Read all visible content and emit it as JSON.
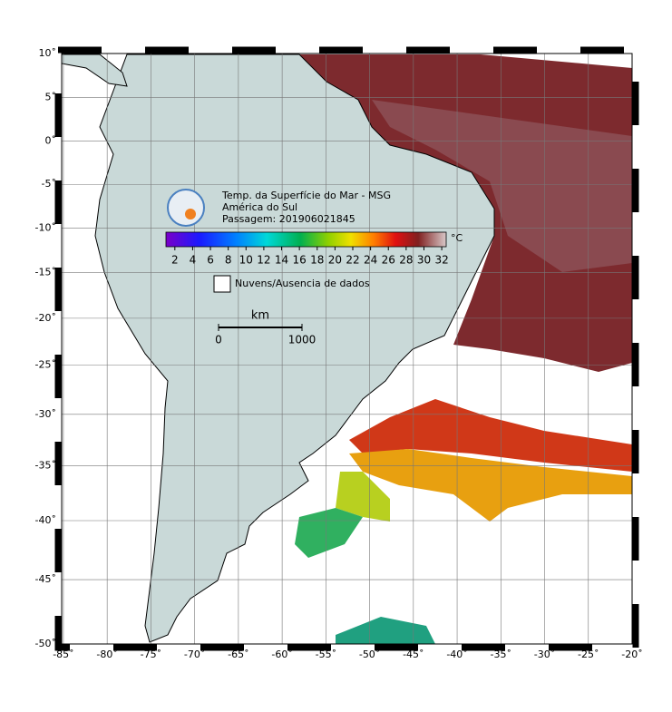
{
  "map": {
    "title": "Temp. da Superfície do Mar - MSG",
    "region": "América do Sul",
    "pass": "Passagem: 201906021845",
    "xlim": [
      -85.2,
      -20
    ],
    "ylim": [
      -50,
      10
    ],
    "xticks": [
      {
        "value": -85,
        "label": "-85˚"
      },
      {
        "value": -80,
        "label": "-80˚"
      },
      {
        "value": -75,
        "label": "-75˚"
      },
      {
        "value": -70,
        "label": "-70˚"
      },
      {
        "value": -65,
        "label": "-65˚"
      },
      {
        "value": -60,
        "label": "-60˚"
      },
      {
        "value": -55,
        "label": "-55˚"
      },
      {
        "value": -50,
        "label": "-50˚"
      },
      {
        "value": -45,
        "label": "-45˚"
      },
      {
        "value": -40,
        "label": "-40˚"
      },
      {
        "value": -35,
        "label": "-35˚"
      },
      {
        "value": -30,
        "label": "-30˚"
      },
      {
        "value": -25,
        "label": "-25˚"
      },
      {
        "value": -20,
        "label": "-20˚"
      }
    ],
    "yticks": [
      {
        "value": 10,
        "label": "10˚"
      },
      {
        "value": 5,
        "label": "5˚"
      },
      {
        "value": 0,
        "label": "0˚"
      },
      {
        "value": -5,
        "label": "-5˚"
      },
      {
        "value": -10,
        "label": "-10˚"
      },
      {
        "value": -15,
        "label": "-15˚"
      },
      {
        "value": -20,
        "label": "-20˚"
      },
      {
        "value": -25,
        "label": "-25˚"
      },
      {
        "value": -30,
        "label": "-30˚"
      },
      {
        "value": -35,
        "label": "-35˚"
      },
      {
        "value": -40,
        "label": "-40˚"
      },
      {
        "value": -45,
        "label": "-45˚"
      },
      {
        "value": -50,
        "label": "-50˚"
      }
    ],
    "grid": true,
    "colorbar": {
      "unit": "°C",
      "lim": [
        1,
        32.5
      ],
      "ticks": [
        2,
        4,
        6,
        8,
        10,
        12,
        14,
        16,
        18,
        20,
        22,
        24,
        26,
        28,
        30,
        32
      ]
    },
    "legend": "Nuvens/Ausencia de dados",
    "scale_bar": {
      "unit": "km",
      "ticks": [
        0,
        1000
      ]
    }
  }
}
